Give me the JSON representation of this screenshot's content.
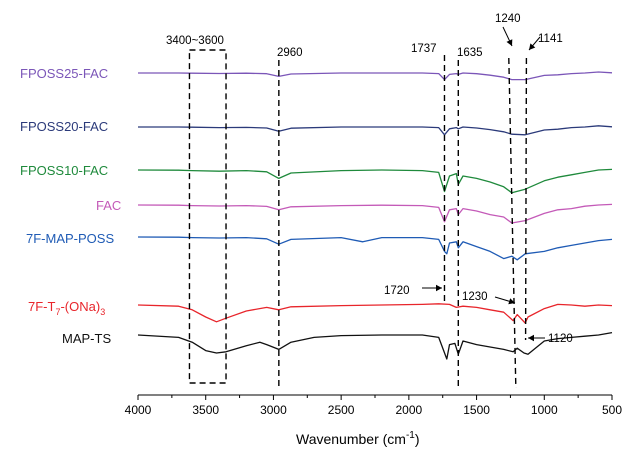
{
  "chart_data": {
    "type": "line",
    "title": "",
    "xlabel": "Wavenumber (cm",
    "xlabel_sup": "-1",
    "xlabel_end": ")",
    "ylabel": "",
    "x_reversed": true,
    "xlim": [
      4000,
      500
    ],
    "x_ticks": [
      4000,
      3500,
      3000,
      2500,
      2000,
      1500,
      1000,
      500
    ],
    "grid": false,
    "legend": "inline labels",
    "series": [
      {
        "name": "FPOSS25-FAC",
        "color": "#7b56b8",
        "x": [
          4000,
          3700,
          3600,
          3400,
          3200,
          3050,
          2960,
          2870,
          2500,
          2200,
          1900,
          1780,
          1737,
          1700,
          1650,
          1635,
          1600,
          1500,
          1400,
          1300,
          1240,
          1141,
          1000,
          900,
          800,
          700,
          600,
          500
        ],
        "y": [
          0.0,
          0.0,
          -0.02,
          -0.04,
          -0.02,
          -0.06,
          -0.28,
          -0.08,
          0.0,
          0.0,
          0.0,
          -0.05,
          -0.55,
          -0.12,
          -0.05,
          -0.12,
          0.0,
          -0.06,
          -0.18,
          -0.35,
          -0.55,
          -0.55,
          -0.2,
          -0.15,
          -0.05,
          0.0,
          0.08,
          0.02
        ]
      },
      {
        "name": "FPOSS20-FAC",
        "color": "#2b3a7a",
        "x": [
          4000,
          3700,
          3600,
          3400,
          3200,
          3050,
          2960,
          2870,
          2500,
          2200,
          1900,
          1780,
          1737,
          1700,
          1650,
          1635,
          1600,
          1500,
          1400,
          1300,
          1240,
          1141,
          1000,
          900,
          800,
          700,
          600,
          500
        ],
        "y": [
          0.0,
          0.0,
          -0.02,
          -0.05,
          -0.03,
          -0.08,
          -0.35,
          -0.1,
          0.0,
          0.0,
          0.0,
          -0.05,
          -0.65,
          -0.15,
          -0.05,
          -0.15,
          0.0,
          -0.08,
          -0.22,
          -0.4,
          -0.6,
          -0.65,
          -0.25,
          -0.18,
          -0.05,
          0.0,
          0.1,
          0.02
        ]
      },
      {
        "name": "FPOSS10-FAC",
        "color": "#1f8a3c",
        "x": [
          4000,
          3700,
          3600,
          3400,
          3200,
          3050,
          2960,
          2870,
          2500,
          2200,
          1900,
          1780,
          1737,
          1700,
          1650,
          1635,
          1600,
          1500,
          1400,
          1300,
          1240,
          1141,
          1000,
          900,
          800,
          700,
          600,
          500
        ],
        "y": [
          0.0,
          -0.02,
          -0.05,
          -0.1,
          -0.05,
          -0.15,
          -0.7,
          -0.25,
          -0.05,
          0.0,
          -0.05,
          -0.2,
          -1.8,
          -0.5,
          -0.3,
          -1.2,
          -0.5,
          -0.7,
          -1.0,
          -1.4,
          -1.9,
          -1.6,
          -0.9,
          -0.6,
          -0.4,
          -0.2,
          0.0,
          0.05
        ]
      },
      {
        "name": "FAC",
        "color": "#c45ab8",
        "x": [
          4000,
          3700,
          3600,
          3400,
          3200,
          3050,
          2960,
          2870,
          2500,
          2200,
          1900,
          1780,
          1737,
          1700,
          1650,
          1635,
          1600,
          1500,
          1400,
          1300,
          1240,
          1141,
          1000,
          900,
          800,
          700,
          600,
          500
        ],
        "y": [
          0.0,
          -0.02,
          -0.05,
          -0.08,
          -0.05,
          -0.12,
          -0.4,
          -0.15,
          -0.05,
          -0.02,
          -0.05,
          -0.2,
          -1.4,
          -0.4,
          -0.3,
          -0.8,
          -0.3,
          -0.5,
          -0.8,
          -1.0,
          -1.5,
          -1.3,
          -0.7,
          -0.4,
          -0.3,
          -0.1,
          0.0,
          0.05
        ]
      },
      {
        "name": "7F-MAP-POSS",
        "color": "#1f5bb5",
        "x": [
          4000,
          3700,
          3600,
          3400,
          3200,
          3050,
          2960,
          2870,
          2500,
          2340,
          2200,
          1900,
          1780,
          1737,
          1720,
          1700,
          1650,
          1635,
          1600,
          1500,
          1400,
          1300,
          1240,
          1200,
          1141,
          1000,
          900,
          800,
          700,
          600,
          500
        ],
        "y": [
          0.0,
          -0.02,
          -0.05,
          -0.08,
          -0.05,
          -0.15,
          -0.6,
          -0.2,
          -0.05,
          -0.4,
          -0.05,
          -0.05,
          -0.2,
          -1.2,
          -1.4,
          -0.5,
          -0.4,
          -0.9,
          -0.4,
          -0.8,
          -1.2,
          -1.8,
          -1.6,
          -1.9,
          -1.4,
          -1.2,
          -0.9,
          -0.7,
          -0.5,
          -0.3,
          -0.2
        ]
      },
      {
        "name": "7F-T7-(ONa)3",
        "color": "#e8252b",
        "x": [
          4000,
          3700,
          3600,
          3500,
          3420,
          3350,
          3200,
          3050,
          2960,
          2870,
          2500,
          2200,
          1900,
          1780,
          1700,
          1650,
          1600,
          1500,
          1400,
          1300,
          1230,
          1200,
          1141,
          1120,
          1000,
          900,
          800,
          700,
          600,
          500
        ],
        "y": [
          0.0,
          -0.1,
          -0.4,
          -1.0,
          -1.4,
          -1.1,
          -0.5,
          -0.2,
          -0.4,
          -0.15,
          -0.05,
          0.0,
          0.05,
          0.1,
          0.05,
          -0.2,
          -0.1,
          -0.2,
          -0.4,
          -0.6,
          -1.3,
          -0.8,
          -1.5,
          -1.0,
          -0.3,
          0.05,
          0.0,
          -0.1,
          0.0,
          -0.05
        ]
      },
      {
        "name": "MAP-TS",
        "color": "#111111",
        "x": [
          4000,
          3700,
          3600,
          3500,
          3420,
          3350,
          3200,
          3100,
          3050,
          2960,
          2870,
          2700,
          2500,
          2200,
          1900,
          1780,
          1720,
          1700,
          1660,
          1635,
          1600,
          1500,
          1400,
          1300,
          1230,
          1200,
          1150,
          1120,
          1000,
          900,
          800,
          700,
          600,
          500
        ],
        "y": [
          0.0,
          -0.2,
          -0.6,
          -1.3,
          -1.5,
          -1.4,
          -0.9,
          -0.6,
          -0.8,
          -1.2,
          -0.6,
          -0.2,
          -0.05,
          0.0,
          0.0,
          -0.2,
          -2.0,
          -0.8,
          -0.7,
          -1.6,
          -0.5,
          -0.8,
          -1.0,
          -1.2,
          -1.4,
          -1.1,
          -1.5,
          -1.6,
          -0.5,
          -0.3,
          -0.2,
          -0.1,
          0.0,
          0.2
        ]
      }
    ],
    "annotations": {
      "box_label": "3400~3600",
      "marked_lines": [
        "2960",
        "1737",
        "1635",
        "1240",
        "1141"
      ],
      "arrows": [
        "1720",
        "1230",
        "1120"
      ]
    },
    "subscript_label": {
      "prefix": "7F-T",
      "sub1": "7",
      "middle": "-(ONa)",
      "sub2": "3"
    }
  }
}
